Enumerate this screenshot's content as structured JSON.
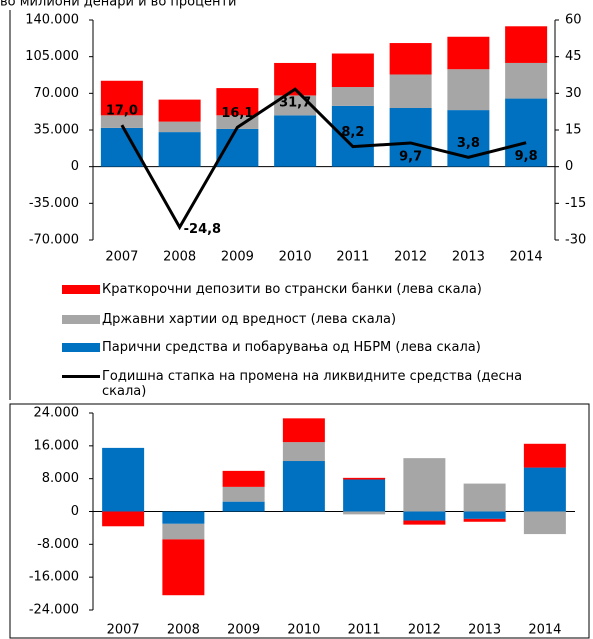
{
  "chart_data": [
    {
      "type": "bar",
      "title": "во милиони денари и во проценти",
      "categories": [
        "2007",
        "2008",
        "2009",
        "2010",
        "2011",
        "2012",
        "2013",
        "2014"
      ],
      "stacked": true,
      "ylim": [
        -70000,
        140000
      ],
      "yticks": [
        {
          "value": -70000,
          "label": "-70.000"
        },
        {
          "value": -35000,
          "label": "-35.000"
        },
        0,
        {
          "value": 35000,
          "label": "35.000"
        },
        {
          "value": 70000,
          "label": "70.000"
        },
        {
          "value": 105000,
          "label": "105.000"
        },
        {
          "value": 140000,
          "label": "140.000"
        }
      ],
      "y2lim": [
        -30,
        60
      ],
      "y2ticks": [
        -30,
        -15,
        0,
        15,
        30,
        45,
        60
      ],
      "series": [
        {
          "name": "Краткорочни депозити во странски банки (лева скала)",
          "color": "#ff0000",
          "layer": 2,
          "values": [
            33000,
            21000,
            26000,
            31000,
            32000,
            30000,
            31000,
            35000
          ]
        },
        {
          "name": "Државни хартии од вредност (лева скала)",
          "color": "#a6a6a6",
          "layer": 1,
          "values": [
            12000,
            10000,
            13000,
            19000,
            18000,
            32000,
            39000,
            34000
          ]
        },
        {
          "name": "Парични средства и побарувања од НБРМ (лева скала)",
          "color": "#0070c0",
          "layer": 0,
          "values": [
            37000,
            33000,
            36000,
            49000,
            58000,
            56000,
            54000,
            65000
          ]
        },
        {
          "name": "Годишна стапка на промена на ликвидните средства (десна скала)",
          "color": "#000000",
          "type": "line",
          "axis": "y2",
          "values": [
            17.0,
            -24.8,
            16.1,
            31.7,
            8.2,
            9.7,
            3.8,
            9.8
          ],
          "value_labels": [
            "17,0",
            "-24,8",
            "16,1",
            "31,7",
            "8,2",
            "9,7",
            "3,8",
            "9,8"
          ]
        }
      ]
    },
    {
      "type": "bar",
      "categories": [
        "2007",
        "2008",
        "2009",
        "2010",
        "2011",
        "2012",
        "2013",
        "2014"
      ],
      "stacked": true,
      "ylim": [
        -24000,
        24000
      ],
      "yticks": [
        {
          "value": -24000,
          "label": "-24.000"
        },
        {
          "value": -16000,
          "label": "-16.000"
        },
        {
          "value": -8000,
          "label": "-8.000"
        },
        0,
        {
          "value": 8000,
          "label": "8.000"
        },
        {
          "value": 16000,
          "label": "16.000"
        },
        {
          "value": 24000,
          "label": "24.000"
        }
      ],
      "series": [
        {
          "color": "#0070c0",
          "layer": 0,
          "values": [
            15500,
            -3000,
            2400,
            12300,
            7800,
            -2200,
            -1800,
            10700
          ]
        },
        {
          "color": "#a6a6a6",
          "layer": 1,
          "values": [
            0,
            -3800,
            3600,
            4600,
            -700,
            13000,
            6800,
            -5500
          ]
        },
        {
          "color": "#ff0000",
          "layer": 2,
          "values": [
            -3600,
            -13600,
            3900,
            5800,
            400,
            -1000,
            -700,
            5800
          ]
        }
      ]
    }
  ]
}
